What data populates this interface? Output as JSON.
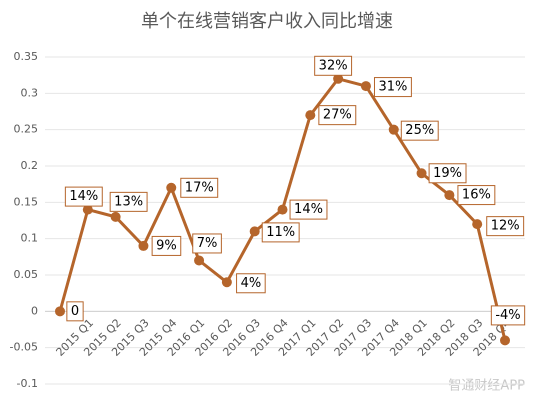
{
  "chart_data": {
    "type": "line",
    "title": "单个在线营销客户收入同比增速",
    "watermark": "智通财经APP",
    "categories": [
      null,
      "2015 Q1",
      "2015 Q2",
      "2015 Q3",
      "2015 Q4",
      "2016 Q1",
      "2016 Q2",
      "2016 Q3",
      "2016 Q4",
      "2017 Q1",
      "2017 Q2",
      "2017 Q3",
      "2017 Q4",
      "2018 Q1",
      "2018 Q2",
      "2018 Q3",
      "2018 Q4"
    ],
    "values": [
      0,
      0.14,
      0.13,
      0.09,
      0.17,
      0.07,
      0.04,
      0.11,
      0.14,
      0.27,
      0.32,
      0.31,
      0.25,
      0.19,
      0.16,
      0.12,
      -0.04
    ],
    "value_labels": [
      "0",
      "14%",
      "13%",
      "9%",
      "17%",
      "7%",
      "4%",
      "11%",
      "14%",
      "27%",
      "32%",
      "31%",
      "25%",
      "19%",
      "16%",
      "12%",
      "-4%"
    ],
    "color": "#b5652b",
    "ylim": [
      -0.1,
      0.35
    ],
    "yticks": [
      -0.1,
      -0.05,
      0,
      0.05,
      0.1,
      0.15,
      0.2,
      0.25,
      0.3,
      0.35
    ],
    "grid": true
  }
}
